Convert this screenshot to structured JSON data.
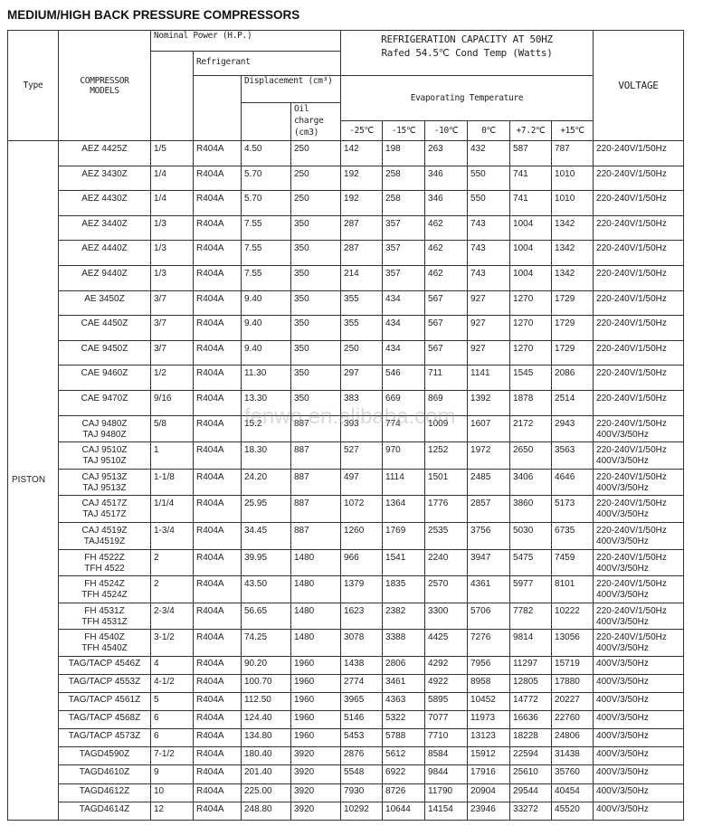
{
  "title": "MEDIUM/HIGH BACK PRESSURE COMPRESSORS",
  "watermark": "fenwo.en.alibaba.com",
  "header": {
    "type": "Type",
    "models": "COMPRESSOR\nMODELS",
    "nominal_power": "Nominal Power (H.P.)",
    "refrigerant": "Refrigerant",
    "displacement": "Displacement (cm³)",
    "oil_charge": "Oil charge (cm3)",
    "capacity_line1": "REFRIGERATION   CAPACITY AT 50HZ",
    "capacity_line2": "Rafed 54.5℃ Cond Temp (Watts)",
    "evaporating": "Evaporating Temperature",
    "temps": [
      "-25℃",
      "-15℃",
      "-10℃",
      "0℃",
      "+7.2℃",
      "+15℃"
    ],
    "voltage": "VOLTAGE"
  },
  "type_value": "PISTON",
  "rows": [
    [
      "AEZ 4425Z",
      "1/5",
      "R404A",
      "4.50",
      "250",
      "142",
      "198",
      "263",
      "432",
      "587",
      "787",
      "220-240V/1/50Hz"
    ],
    [
      "AEZ 3430Z",
      "1/4",
      "R404A",
      "5.70",
      "250",
      "192",
      "258",
      "346",
      "550",
      "741",
      "1010",
      "220-240V/1/50Hz"
    ],
    [
      "AEZ 4430Z",
      "1/4",
      "R404A",
      "5.70",
      "250",
      "192",
      "258",
      "346",
      "550",
      "741",
      "1010",
      "220-240V/1/50Hz"
    ],
    [
      "AEZ 3440Z",
      "1/3",
      "R404A",
      "7.55",
      "350",
      "287",
      "357",
      "462",
      "743",
      "1004",
      "1342",
      "220-240V/1/50Hz"
    ],
    [
      "AEZ 4440Z",
      "1/3",
      "R404A",
      "7.55",
      "350",
      "287",
      "357",
      "462",
      "743",
      "1004",
      "1342",
      "220-240V/1/50Hz"
    ],
    [
      "AEZ 9440Z",
      "1/3",
      "R404A",
      "7.55",
      "350",
      "214",
      "357",
      "462",
      "743",
      "1004",
      "1342",
      "220-240V/1/50Hz"
    ],
    [
      "AE 3450Z",
      "3/7",
      "R404A",
      "9.40",
      "350",
      "355",
      "434",
      "567",
      "927",
      "1270",
      "1729",
      "220-240V/1/50Hz"
    ],
    [
      "CAE 4450Z",
      "3/7",
      "R404A",
      "9.40",
      "350",
      "355",
      "434",
      "567",
      "927",
      "1270",
      "1729",
      "220-240V/1/50Hz"
    ],
    [
      "CAE 9450Z",
      "3/7",
      "R404A",
      "9.40",
      "350",
      "250",
      "434",
      "567",
      "927",
      "1270",
      "1729",
      "220-240V/1/50Hz"
    ],
    [
      "CAE 9460Z",
      "1/2",
      "R404A",
      "11.30",
      "350",
      "297",
      "546",
      "711",
      "1141",
      "1545",
      "2086",
      "220-240V/1/50Hz"
    ],
    [
      "CAE 9470Z",
      "9/16",
      "R404A",
      "13.30",
      "350",
      "383",
      "669",
      "869",
      "1392",
      "1878",
      "2514",
      "220-240V/1/50Hz"
    ],
    [
      "CAJ 9480Z\nTAJ 9480Z",
      "5/8",
      "R404A",
      "15.2",
      "887",
      "393",
      "774",
      "1009",
      "1607",
      "2172",
      "2943",
      "220-240V/1/50Hz\n400V/3/50Hz"
    ],
    [
      "CAJ 9510Z\nTAJ 9510Z",
      "1",
      "R404A",
      "18.30",
      "887",
      "527",
      "970",
      "1252",
      "1972",
      "2650",
      "3563",
      "220-240V/1/50Hz\n400V/3/50Hz"
    ],
    [
      "CAJ 9513Z\nTAJ 9513Z",
      "1-1/8",
      "R404A",
      "24.20",
      "887",
      "497",
      "1114",
      "1501",
      "2485",
      "3406",
      "4646",
      "220-240V/1/50Hz\n400V/3/50Hz"
    ],
    [
      "CAJ 4517Z\nTAJ 4517Z",
      "1/1/4",
      "R404A",
      "25.95",
      "887",
      "1072",
      "1364",
      "1776",
      "2857",
      "3860",
      "5173",
      "220-240V/1/50Hz\n400V/3/50Hz"
    ],
    [
      "CAJ 4519Z\nTAJ4519Z",
      "1-3/4",
      "R404A",
      "34.45",
      "887",
      "1260",
      "1769",
      "2535",
      "3756",
      "5030",
      "6735",
      "220-240V/1/50Hz\n400V/3/50Hz"
    ],
    [
      "FH 4522Z\nTFH 4522",
      "2",
      "R404A",
      "39.95",
      "1480",
      "966",
      "1541",
      "2240",
      "3947",
      "5475",
      "7459",
      "220-240V/1/50Hz\n400V/3/50Hz"
    ],
    [
      "FH 4524Z\nTFH 4524Z",
      "2",
      "R404A",
      "43.50",
      "1480",
      "1379",
      "1835",
      "2570",
      "4361",
      "5977",
      "8101",
      "220-240V/1/50Hz\n400V/3/50Hz"
    ],
    [
      "FH 4531Z\nTFH 4531Z",
      "2-3/4",
      "R404A",
      "56.65",
      "1480",
      "1623",
      "2382",
      "3300",
      "5706",
      "7782",
      "10222",
      "220-240V/1/50Hz\n400V/3/50Hz"
    ],
    [
      "FH 4540Z\nTFH 4540Z",
      "3-1/2",
      "R404A",
      "74.25",
      "1480",
      "3078",
      "3388",
      "4425",
      "7276",
      "9814",
      "13056",
      "220-240V/1/50Hz\n400V/3/50Hz"
    ],
    [
      "TAG/TACP 4546Z",
      "4",
      "R404A",
      "90.20",
      "1960",
      "1438",
      "2806",
      "4292",
      "7956",
      "11297",
      "15719",
      "400V/3/50Hz"
    ],
    [
      "TAG/TACP 4553Z",
      "4-1/2",
      "R404A",
      "100.70",
      "1960",
      "2774",
      "3461",
      "4922",
      "8958",
      "12805",
      "17880",
      "400V/3/50Hz"
    ],
    [
      "TAG/TACP 4561Z",
      "5",
      "R404A",
      "112.50",
      "1960",
      "3965",
      "4363",
      "5895",
      "10452",
      "14772",
      "20227",
      "400V/3/50Hz"
    ],
    [
      "TAG/TACP 4568Z",
      "6",
      "R404A",
      "124.40",
      "1960",
      "5146",
      "5322",
      "7077",
      "11973",
      "16636",
      "22760",
      "400V/3/50Hz"
    ],
    [
      "TAG/TACP 4573Z",
      "6",
      "R404A",
      "134.80",
      "1960",
      "5453",
      "5788",
      "7710",
      "13123",
      "18228",
      "24806",
      "400V/3/50Hz"
    ],
    [
      "TAGD4590Z",
      "7-1/2",
      "R404A",
      "180.40",
      "3920",
      "2876",
      "5612",
      "8584",
      "15912",
      "22594",
      "31438",
      "400V/3/50Hz"
    ],
    [
      "TAGD4610Z",
      "9",
      "R404A",
      "201.40",
      "3920",
      "5548",
      "6922",
      "9844",
      "17916",
      "25610",
      "35760",
      "400V/3/50Hz"
    ],
    [
      "TAGD4612Z",
      "10",
      "R404A",
      "225.00",
      "3920",
      "7930",
      "8726",
      "11790",
      "20904",
      "29544",
      "40454",
      "400V/3/50Hz"
    ],
    [
      "TAGD4614Z",
      "12",
      "R404A",
      "248.80",
      "3920",
      "10292",
      "10644",
      "14154",
      "23946",
      "33272",
      "45520",
      "400V/3/50Hz"
    ]
  ]
}
